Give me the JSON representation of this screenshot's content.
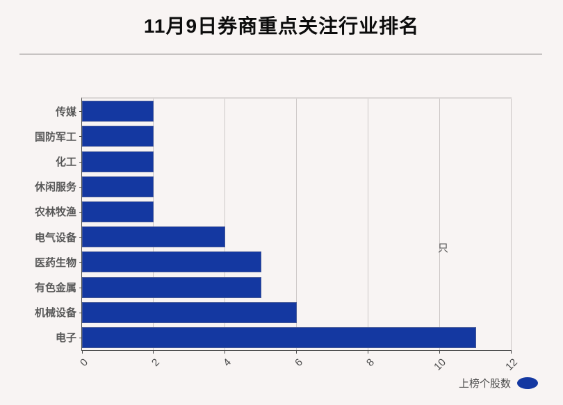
{
  "page": {
    "background": "#f8f4f3"
  },
  "chart_data": {
    "type": "bar",
    "orientation": "horizontal",
    "title": "11月9日券商重点关注行业排名",
    "categories": [
      "传媒",
      "国防军工",
      "化工",
      "休闲服务",
      "农林牧渔",
      "电气设备",
      "医药生物",
      "有色金属",
      "机械设备",
      "电子"
    ],
    "values": [
      2,
      2,
      2,
      2,
      2,
      4,
      5,
      5,
      6,
      11
    ],
    "series_name": "上榜个股数",
    "x_ticks": [
      0,
      2,
      4,
      6,
      8,
      10,
      12
    ],
    "xlim": [
      0,
      12
    ],
    "x_unit": "只",
    "xlabel": "",
    "ylabel": "",
    "grid": "vertical-only",
    "x_tick_rotation": -45,
    "legend_position": "bottom-right",
    "bar_color": "#1438a1",
    "category_label_color": "#585858",
    "tick_label_color": "#4d4d4d"
  }
}
